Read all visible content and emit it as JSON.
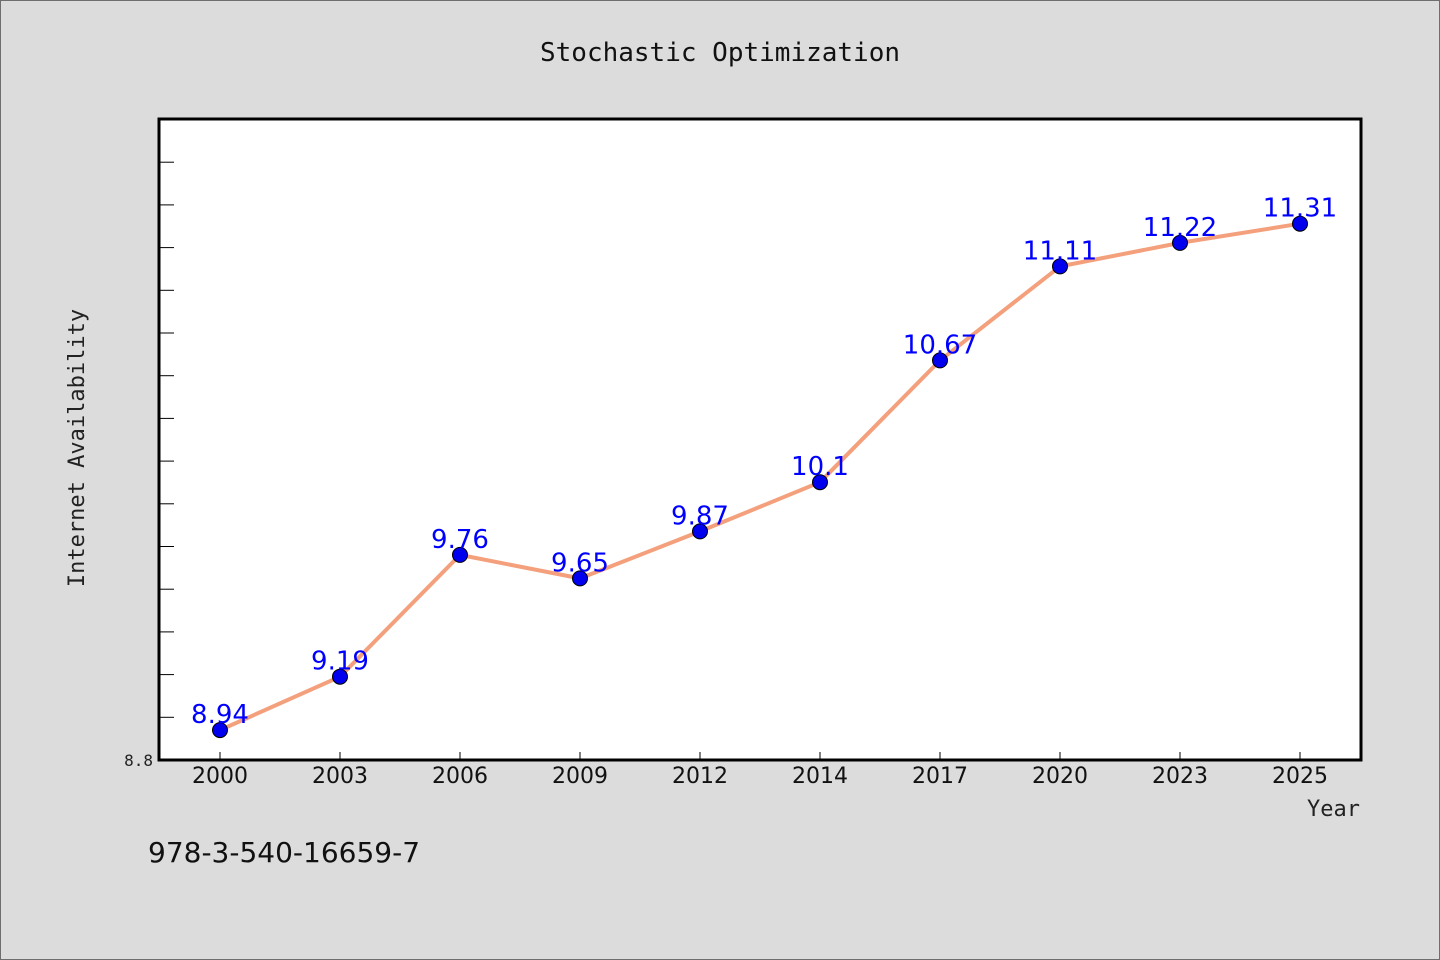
{
  "chart_data": {
    "type": "line",
    "title": "Stochastic Optimization",
    "xlabel": "Year",
    "ylabel": "Internet Availability",
    "categories": [
      "2000",
      "2003",
      "2006",
      "2009",
      "2012",
      "2014",
      "2017",
      "2020",
      "2023",
      "2025"
    ],
    "series": [
      {
        "values": [
          8.94,
          9.19,
          9.76,
          9.65,
          9.87,
          10.1,
          10.67,
          11.11,
          11.22,
          11.31
        ],
        "labels": [
          "8.94",
          "9.19",
          "9.76",
          "9.65",
          "9.87",
          "10.1",
          "10.67",
          "11.11",
          "11.22",
          "11.31"
        ],
        "line_color": "#f4a07c",
        "marker_color": "#0000ee"
      }
    ],
    "ylim": [
      8.8,
      11.8
    ],
    "y_tick_labels": [
      "8.8"
    ],
    "grid": false,
    "legend": "none"
  },
  "footer": {
    "isbn": "978-3-540-16659-7"
  }
}
